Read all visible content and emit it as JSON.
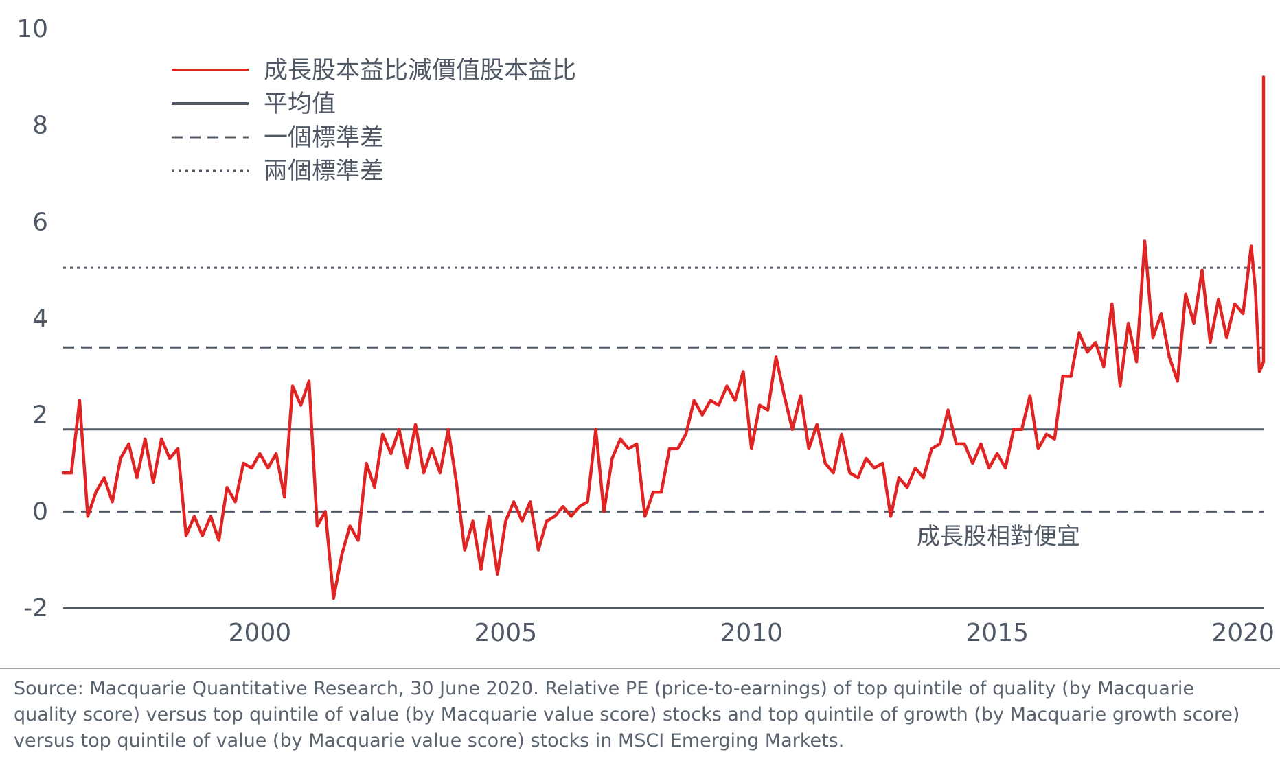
{
  "chart_data": {
    "type": "line",
    "ylim": [
      -2,
      10
    ],
    "yticks": [
      -2,
      0,
      2,
      4,
      6,
      8,
      10
    ],
    "xlim": [
      "1996-01",
      "2020-06"
    ],
    "xticks": [
      "2000",
      "2005",
      "2010",
      "2015",
      "2020"
    ],
    "grid": false,
    "legend_position": "top-left",
    "legend": [
      {
        "label": "成長股本益比減價值股本益比",
        "style": "solid",
        "color": "#e02424"
      },
      {
        "label": "平均值",
        "style": "solid",
        "color": "#4f5864"
      },
      {
        "label": "一個標準差",
        "style": "dashed",
        "color": "#4f5864"
      },
      {
        "label": "兩個標準差",
        "style": "dotted",
        "color": "#4f5864"
      }
    ],
    "reference_lines": [
      {
        "name": "平均值",
        "value": 1.7,
        "style": "solid"
      },
      {
        "name": "一個標準差",
        "value": 3.4,
        "style": "dashed"
      },
      {
        "name": "一個標準差",
        "value": 0.0,
        "style": "dashed"
      },
      {
        "name": "兩個標準差",
        "value": 5.05,
        "style": "dotted"
      }
    ],
    "annotation": "成長股相對便宜",
    "series": [
      {
        "color": "#e02424",
        "points": [
          [
            "1996-01",
            0.8
          ],
          [
            "1996-03",
            0.8
          ],
          [
            "1996-05",
            2.3
          ],
          [
            "1996-07",
            -0.1
          ],
          [
            "1996-09",
            0.4
          ],
          [
            "1996-11",
            0.7
          ],
          [
            "1997-01",
            0.2
          ],
          [
            "1997-03",
            1.1
          ],
          [
            "1997-05",
            1.4
          ],
          [
            "1997-07",
            0.7
          ],
          [
            "1997-09",
            1.5
          ],
          [
            "1997-11",
            0.6
          ],
          [
            "1998-01",
            1.5
          ],
          [
            "1998-03",
            1.1
          ],
          [
            "1998-05",
            1.3
          ],
          [
            "1998-07",
            -0.5
          ],
          [
            "1998-09",
            -0.1
          ],
          [
            "1998-11",
            -0.5
          ],
          [
            "1999-01",
            -0.1
          ],
          [
            "1999-03",
            -0.6
          ],
          [
            "1999-05",
            0.5
          ],
          [
            "1999-07",
            0.2
          ],
          [
            "1999-09",
            1.0
          ],
          [
            "1999-11",
            0.9
          ],
          [
            "2000-01",
            1.2
          ],
          [
            "2000-03",
            0.9
          ],
          [
            "2000-05",
            1.2
          ],
          [
            "2000-07",
            0.3
          ],
          [
            "2000-09",
            2.6
          ],
          [
            "2000-11",
            2.2
          ],
          [
            "2001-01",
            2.7
          ],
          [
            "2001-03",
            -0.3
          ],
          [
            "2001-05",
            0.0
          ],
          [
            "2001-07",
            -1.8
          ],
          [
            "2001-09",
            -0.9
          ],
          [
            "2001-11",
            -0.3
          ],
          [
            "2002-01",
            -0.6
          ],
          [
            "2002-03",
            1.0
          ],
          [
            "2002-05",
            0.5
          ],
          [
            "2002-07",
            1.6
          ],
          [
            "2002-09",
            1.2
          ],
          [
            "2002-11",
            1.7
          ],
          [
            "2003-01",
            0.9
          ],
          [
            "2003-03",
            1.8
          ],
          [
            "2003-05",
            0.8
          ],
          [
            "2003-07",
            1.3
          ],
          [
            "2003-09",
            0.8
          ],
          [
            "2003-11",
            1.7
          ],
          [
            "2004-01",
            0.6
          ],
          [
            "2004-03",
            -0.8
          ],
          [
            "2004-05",
            -0.2
          ],
          [
            "2004-07",
            -1.2
          ],
          [
            "2004-09",
            -0.1
          ],
          [
            "2004-11",
            -1.3
          ],
          [
            "2005-01",
            -0.2
          ],
          [
            "2005-03",
            0.2
          ],
          [
            "2005-05",
            -0.2
          ],
          [
            "2005-07",
            0.2
          ],
          [
            "2005-09",
            -0.8
          ],
          [
            "2005-11",
            -0.2
          ],
          [
            "2006-01",
            -0.1
          ],
          [
            "2006-03",
            0.1
          ],
          [
            "2006-05",
            -0.1
          ],
          [
            "2006-07",
            0.1
          ],
          [
            "2006-09",
            0.2
          ],
          [
            "2006-11",
            1.7
          ],
          [
            "2007-01",
            0.0
          ],
          [
            "2007-03",
            1.1
          ],
          [
            "2007-05",
            1.5
          ],
          [
            "2007-07",
            1.3
          ],
          [
            "2007-09",
            1.4
          ],
          [
            "2007-11",
            -0.1
          ],
          [
            "2008-01",
            0.4
          ],
          [
            "2008-03",
            0.4
          ],
          [
            "2008-05",
            1.3
          ],
          [
            "2008-07",
            1.3
          ],
          [
            "2008-09",
            1.6
          ],
          [
            "2008-11",
            2.3
          ],
          [
            "2009-01",
            2.0
          ],
          [
            "2009-03",
            2.3
          ],
          [
            "2009-05",
            2.2
          ],
          [
            "2009-07",
            2.6
          ],
          [
            "2009-09",
            2.3
          ],
          [
            "2009-11",
            2.9
          ],
          [
            "2010-01",
            1.3
          ],
          [
            "2010-03",
            2.2
          ],
          [
            "2010-05",
            2.1
          ],
          [
            "2010-07",
            3.2
          ],
          [
            "2010-09",
            2.4
          ],
          [
            "2010-11",
            1.7
          ],
          [
            "2011-01",
            2.4
          ],
          [
            "2011-03",
            1.3
          ],
          [
            "2011-05",
            1.8
          ],
          [
            "2011-07",
            1.0
          ],
          [
            "2011-09",
            0.8
          ],
          [
            "2011-11",
            1.6
          ],
          [
            "2012-01",
            0.8
          ],
          [
            "2012-03",
            0.7
          ],
          [
            "2012-05",
            1.1
          ],
          [
            "2012-07",
            0.9
          ],
          [
            "2012-09",
            1.0
          ],
          [
            "2012-11",
            -0.1
          ],
          [
            "2013-01",
            0.7
          ],
          [
            "2013-03",
            0.5
          ],
          [
            "2013-05",
            0.9
          ],
          [
            "2013-07",
            0.7
          ],
          [
            "2013-09",
            1.3
          ],
          [
            "2013-11",
            1.4
          ],
          [
            "2014-01",
            2.1
          ],
          [
            "2014-03",
            1.4
          ],
          [
            "2014-05",
            1.4
          ],
          [
            "2014-07",
            1.0
          ],
          [
            "2014-09",
            1.4
          ],
          [
            "2014-11",
            0.9
          ],
          [
            "2015-01",
            1.2
          ],
          [
            "2015-03",
            0.9
          ],
          [
            "2015-05",
            1.7
          ],
          [
            "2015-07",
            1.7
          ],
          [
            "2015-09",
            2.4
          ],
          [
            "2015-11",
            1.3
          ],
          [
            "2016-01",
            1.6
          ],
          [
            "2016-03",
            1.5
          ],
          [
            "2016-05",
            2.8
          ],
          [
            "2016-07",
            2.8
          ],
          [
            "2016-09",
            3.7
          ],
          [
            "2016-11",
            3.3
          ],
          [
            "2017-01",
            3.5
          ],
          [
            "2017-03",
            3.0
          ],
          [
            "2017-05",
            4.3
          ],
          [
            "2017-07",
            2.6
          ],
          [
            "2017-09",
            3.9
          ],
          [
            "2017-11",
            3.1
          ],
          [
            "2018-01",
            5.6
          ],
          [
            "2018-03",
            3.6
          ],
          [
            "2018-05",
            4.1
          ],
          [
            "2018-07",
            3.2
          ],
          [
            "2018-09",
            2.7
          ],
          [
            "2018-11",
            4.5
          ],
          [
            "2019-01",
            3.9
          ],
          [
            "2019-03",
            5.0
          ],
          [
            "2019-05",
            3.5
          ],
          [
            "2019-07",
            4.4
          ],
          [
            "2019-09",
            3.6
          ],
          [
            "2019-11",
            4.3
          ],
          [
            "2020-01",
            4.1
          ],
          [
            "2020-03",
            5.5
          ],
          [
            "2020-04",
            4.6
          ],
          [
            "2020-05",
            2.9
          ],
          [
            "2020-06",
            3.1
          ],
          [
            "2020-06",
            9.0
          ]
        ]
      }
    ]
  },
  "source_note": "Source: Macquarie Quantitative Research, 30 June 2020. Relative PE (price-to-earnings) of top quintile of quality (by Macquarie quality score) versus top quintile of value (by Macquarie value score) stocks and top quintile of growth (by Macquarie growth score) versus top quintile of value (by Macquarie value score) stocks in MSCI Emerging Markets."
}
